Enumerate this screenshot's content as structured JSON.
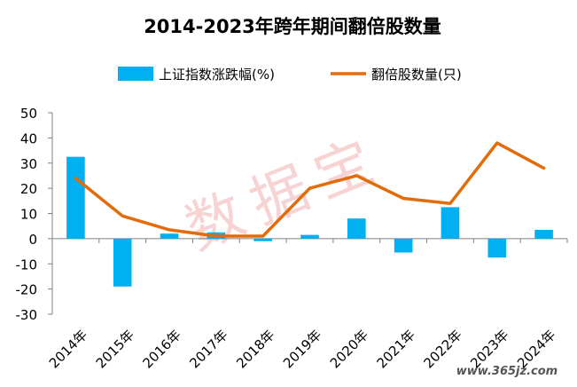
{
  "chart_data": {
    "type": "bar",
    "title": "2014-2023年跨年期间翻倍股数量",
    "categories": [
      "2014年",
      "2015年",
      "2016年",
      "2017年",
      "2018年",
      "2019年",
      "2020年",
      "2021年",
      "2022年",
      "2023年",
      "2024年"
    ],
    "series": [
      {
        "name": "上证指数涨跌幅(%)",
        "type": "bar",
        "color": "#00b0f0",
        "values": [
          32.5,
          -19,
          2,
          2.5,
          -1,
          1.5,
          8,
          -5.5,
          12.5,
          -7.5,
          3.5
        ]
      },
      {
        "name": "翻倍股数量(只)",
        "type": "line",
        "color": "#e36c0a",
        "values": [
          24,
          9,
          3.5,
          1,
          1,
          20,
          25,
          16,
          14,
          38,
          28
        ]
      }
    ],
    "ylim": [
      -30,
      50
    ],
    "yticks": [
      50,
      40,
      30,
      20,
      10,
      0,
      -10,
      -20,
      -30
    ],
    "grid": false,
    "legend": "top",
    "xlabel": "",
    "ylabel": ""
  },
  "watermark": {
    "text": "数据宝",
    "color": "#f4b6b6"
  },
  "site_mark": {
    "text": "www.365jz.com"
  }
}
